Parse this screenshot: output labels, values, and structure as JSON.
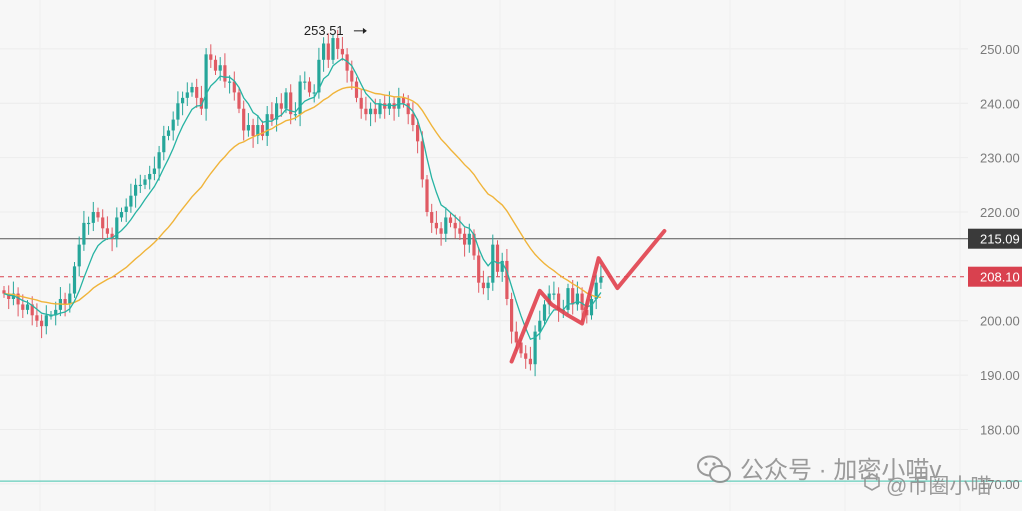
{
  "chart_data": {
    "type": "candlestick",
    "price_axis": {
      "labels": [
        "250.00",
        "240.00",
        "230.00",
        "220.00",
        "200.00",
        "190.00",
        "180.00",
        "170.00"
      ],
      "values": [
        250,
        240,
        230,
        220,
        200,
        190,
        180,
        170
      ],
      "range": [
        165,
        259
      ]
    },
    "high_marker": {
      "label": "253.51",
      "value": 253.51,
      "candle_index": 77
    },
    "price_lines": [
      {
        "label": "215.09",
        "value": 215.09,
        "style": "solid",
        "color": "#555555"
      },
      {
        "label": "208.10",
        "value": 208.1,
        "style": "dashed",
        "color": "#d9414f"
      }
    ],
    "bottom_line": {
      "value": 170.5,
      "color": "#64cdbb"
    },
    "colors": {
      "up": "#26a69a",
      "down": "#e05a63",
      "ma_fast": "#27b3a3",
      "ma_slow": "#f0b43a",
      "drawing": "#e0404c"
    },
    "candle_closes": [
      205,
      204,
      205,
      203,
      202,
      203,
      201,
      200,
      199,
      201,
      201,
      202,
      204,
      203,
      205,
      210,
      214,
      218,
      218,
      220,
      219,
      217,
      216,
      215,
      219,
      220,
      221,
      223,
      225,
      225,
      226,
      227,
      228,
      231,
      234,
      235,
      237,
      240,
      241,
      242,
      243,
      241,
      239,
      249,
      248,
      246,
      247,
      244,
      244,
      242,
      239,
      235,
      236,
      234,
      236,
      234,
      238,
      237,
      240,
      239,
      242,
      238,
      238,
      244,
      244,
      242,
      242,
      248,
      251,
      248,
      252,
      250,
      249,
      246,
      244,
      241,
      239,
      238,
      239,
      238,
      240,
      239,
      240,
      239,
      241,
      240,
      238,
      236,
      233,
      226,
      220,
      218,
      217,
      216,
      219,
      218,
      217,
      216,
      214,
      216,
      212,
      207,
      206,
      207,
      214,
      209,
      211,
      204,
      198,
      196,
      194,
      193,
      192,
      198,
      200,
      203,
      205,
      205,
      202,
      202,
      206,
      203,
      205,
      202,
      201,
      204,
      207,
      208
    ],
    "ma_fast": [
      205,
      204.7,
      204.6,
      204.2,
      203.7,
      203.4,
      202.8,
      202.1,
      201.4,
      201.2,
      201,
      201.1,
      201.4,
      201.6,
      202.2,
      203.6,
      205.5,
      207.9,
      210.1,
      212.3,
      213.8,
      214.6,
      215.1,
      215.2,
      215.9,
      216.6,
      217.5,
      218.6,
      219.9,
      221,
      222.3,
      223.5,
      224.7,
      226.3,
      228.1,
      229.8,
      231.7,
      233.9,
      235.8,
      237.4,
      238.9,
      239.5,
      239.6,
      241.7,
      243.2,
      244,
      245,
      244.8,
      244.8,
      244.1,
      242.9,
      241,
      239.9,
      238.3,
      237.7,
      236.5,
      236.7,
      236.7,
      237.4,
      237.8,
      238.9,
      238.6,
      238.4,
      239.5,
      240.4,
      240.8,
      241.1,
      242.6,
      244.5,
      245.2,
      246.9,
      247.6,
      248.2,
      247.7,
      246.9,
      245.3,
      243.5,
      241.8,
      240.9,
      239.9,
      239.9,
      239.6,
      239.7,
      239.5,
      239.9,
      239.9,
      239.4,
      238.5,
      236.9,
      233.9,
      229.9,
      226.3,
      223.6,
      221.3,
      220.7,
      219.9,
      219.1,
      218.3,
      217.3,
      217,
      215.8,
      213.3,
      211.3,
      210.1,
      211.1,
      210.6,
      210.7,
      209.1,
      206.3,
      203.5,
      200.9,
      198.6,
      196.6,
      196.9,
      197.7,
      199.2,
      200.8,
      202,
      202,
      202,
      203.1,
      203.1,
      203.6,
      203.2,
      202.6,
      202.8,
      204,
      205.2
    ],
    "ma_slow": [
      205,
      204.9,
      204.8,
      204.6,
      204.4,
      204.2,
      204,
      203.8,
      203.5,
      203.4,
      203.2,
      203.1,
      203.1,
      203,
      203.1,
      203.4,
      203.8,
      204.5,
      205.2,
      206,
      206.6,
      207.1,
      207.6,
      208,
      208.6,
      209.2,
      209.8,
      210.6,
      211.4,
      212.1,
      212.9,
      213.6,
      214.4,
      215.3,
      216.3,
      217.2,
      218.3,
      219.5,
      220.6,
      221.7,
      222.8,
      223.7,
      224.6,
      225.9,
      227.1,
      228.2,
      229.3,
      230.2,
      231.2,
      232,
      232.6,
      232.9,
      233.4,
      233.8,
      234.2,
      234.5,
      235,
      235.3,
      235.9,
      236.3,
      236.8,
      237,
      237.3,
      237.9,
      238.5,
      238.9,
      239.3,
      239.9,
      240.6,
      241.1,
      241.8,
      242.3,
      242.7,
      242.9,
      243,
      242.9,
      242.6,
      242.4,
      242.1,
      241.8,
      241.7,
      241.5,
      241.4,
      241.2,
      241.2,
      241.1,
      240.8,
      240.4,
      239.8,
      238.7,
      237.3,
      235.9,
      234.6,
      233.4,
      232.5,
      231.5,
      230.6,
      229.7,
      228.7,
      227.9,
      226.9,
      225.6,
      224.4,
      223.3,
      222.8,
      222,
      221.3,
      220.2,
      218.8,
      217.4,
      216,
      214.6,
      213.3,
      212.2,
      211.3,
      210.5,
      209.8,
      209.2,
      208.5,
      207.9,
      207.4,
      206.8,
      206.3,
      205.7,
      205.1,
      204.7,
      204.4,
      204.3
    ],
    "hand_drawn_path": [
      {
        "i": 108,
        "v": 192.5
      },
      {
        "i": 114,
        "v": 205.5
      },
      {
        "i": 116.5,
        "v": 203
      },
      {
        "i": 120,
        "v": 201
      },
      {
        "i": 123,
        "v": 199.5
      },
      {
        "i": 126.5,
        "v": 211.5
      },
      {
        "i": 130.5,
        "v": 206
      },
      {
        "i": 140.5,
        "v": 216.5
      }
    ]
  },
  "watermark": {
    "line1": "公众号 · 加密小喵v",
    "line2": "@币圈小喵"
  }
}
